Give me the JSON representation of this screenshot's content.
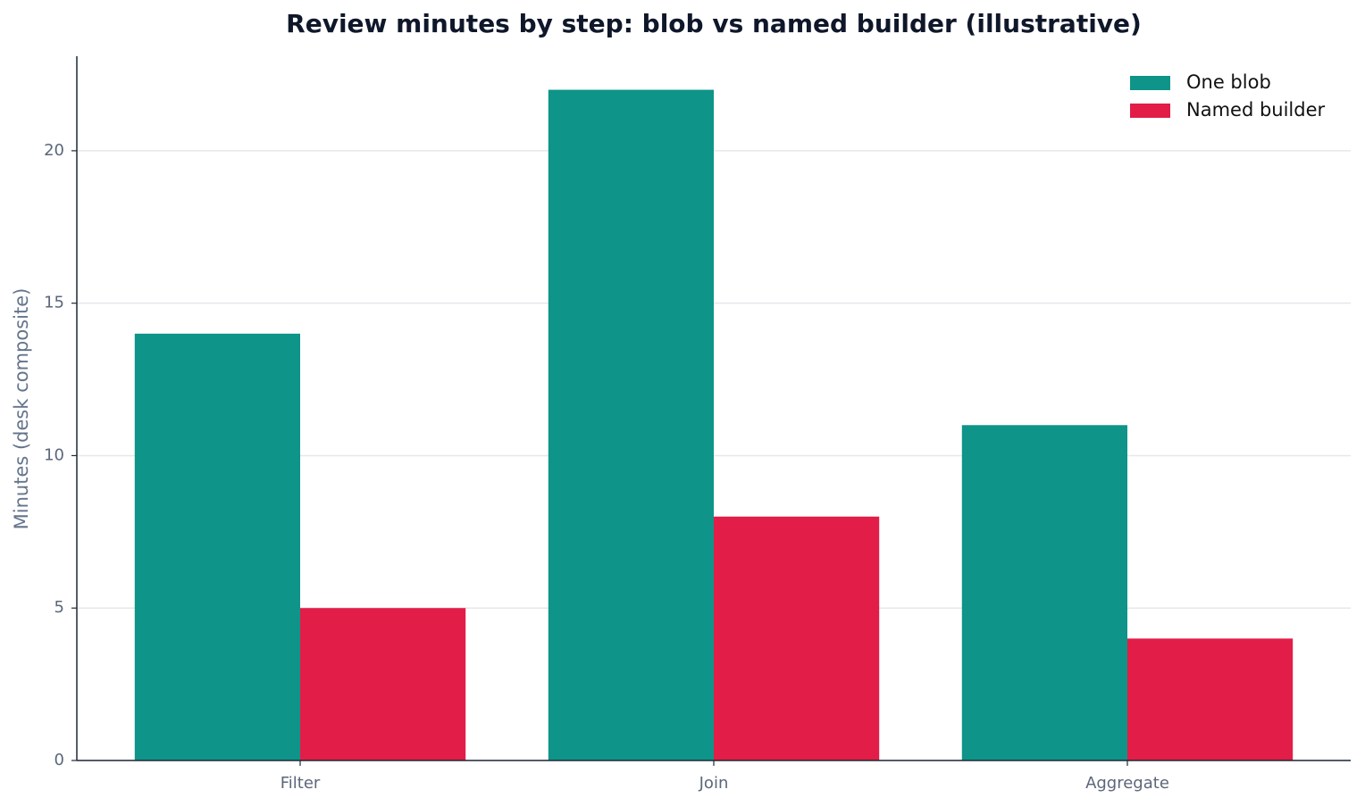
{
  "chart_data": {
    "type": "bar",
    "title": "Review minutes by step: blob vs named builder (illustrative)",
    "ylabel": "Minutes (desk composite)",
    "categories": [
      "Filter",
      "Join",
      "Aggregate"
    ],
    "series": [
      {
        "name": "One blob",
        "color": "#0e9488",
        "values": [
          14,
          22,
          11
        ]
      },
      {
        "name": "Named builder",
        "color": "#e11d48",
        "values": [
          5,
          8,
          4
        ]
      }
    ],
    "ylim": [
      0,
      23.1
    ],
    "yticks": [
      0,
      5,
      10,
      15,
      20
    ],
    "grid": true,
    "legend": "upper-right"
  }
}
